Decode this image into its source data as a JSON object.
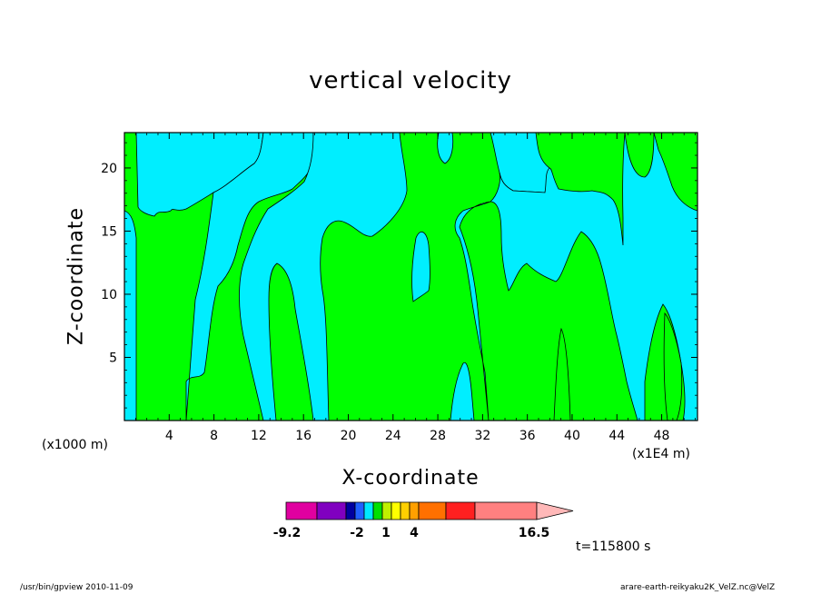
{
  "chart_data": {
    "type": "contour",
    "title": "vertical velocity",
    "xlabel": "X-coordinate",
    "ylabel": "Z-coordinate",
    "x_unit": "(x1E4 m)",
    "y_unit": "(x1000 m)",
    "xlim": [
      0,
      51.2
    ],
    "ylim": [
      0,
      22.8
    ],
    "x_ticks": [
      4,
      8,
      12,
      16,
      20,
      24,
      28,
      32,
      36,
      40,
      44,
      48
    ],
    "y_ticks": [
      5,
      10,
      15,
      20
    ],
    "time_label": "t=115800 s",
    "colorbar": {
      "min": -9.2,
      "max": 16.5,
      "labels": [
        "-9.2",
        "-2",
        "1",
        "4",
        "16.5"
      ],
      "colors": [
        "#e000a0",
        "#8000c0",
        "#0000a0",
        "#2060ff",
        "#00e8ff",
        "#00e000",
        "#c0f000",
        "#ffff00",
        "#ffd000",
        "#ffa000",
        "#ff7000",
        "#ff2020",
        "#ff8080",
        "#ffb8b8"
      ]
    },
    "regions": {
      "positive_color": "#00ff00",
      "negative_color": "#00eeff",
      "cyan_areas": [
        {
          "x": [
            0,
            1.5
          ],
          "z": [
            0,
            16.5
          ]
        },
        {
          "x": [
            1.5,
            12
          ],
          "z": [
            16,
            22.8
          ]
        },
        {
          "x": [
            5.5,
            13
          ],
          "z": [
            0,
            11
          ]
        },
        {
          "x": [
            14,
            24.5
          ],
          "z": [
            15,
            22.8
          ]
        },
        {
          "x": [
            13.5,
            18.5
          ],
          "z": [
            0,
            12.8
          ]
        },
        {
          "x": [
            26,
            28
          ],
          "z": [
            9.5,
            15.3
          ]
        },
        {
          "x": [
            28.5,
            30.5
          ],
          "z": [
            0,
            4.8
          ]
        },
        {
          "x": [
            30,
            35
          ],
          "z": [
            0,
            17.5
          ]
        },
        {
          "x": [
            35,
            51.2
          ],
          "z": [
            0,
            22.8
          ]
        }
      ]
    }
  },
  "footer": {
    "left": "/usr/bin/gpview  2010-11-09",
    "right": "arare-earth-reikyaku2K_VelZ.nc@VelZ"
  }
}
